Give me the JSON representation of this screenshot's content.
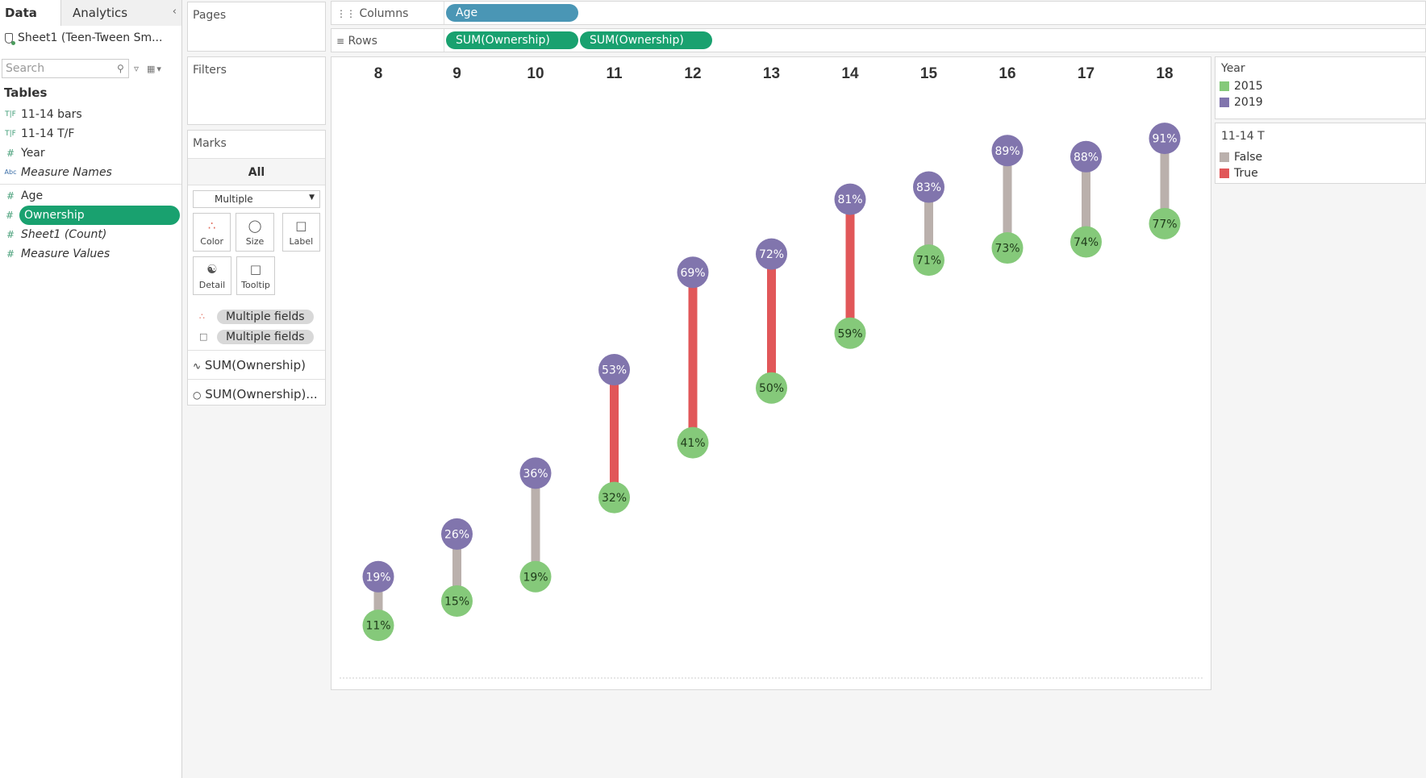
{
  "data_pane": {
    "tabs": [
      "Data",
      "Analytics"
    ],
    "collapse_icon": "chevron-left-icon",
    "datasource": "Sheet1 (Teen-Tween Sm...",
    "search_placeholder": "Search",
    "tables_heading": "Tables",
    "fields": [
      {
        "icon": "T|F",
        "label": "11-14 bars"
      },
      {
        "icon": "T|F",
        "label": "11-14 T/F"
      },
      {
        "icon": "#",
        "label": "Year"
      },
      {
        "icon": "Abc",
        "label": "Measure Names"
      },
      {
        "icon": "#",
        "label": "Age"
      },
      {
        "icon": "#",
        "label": "Ownership"
      },
      {
        "icon": "#",
        "label": "Sheet1 (Count)"
      },
      {
        "icon": "#",
        "label": "Measure Values"
      }
    ]
  },
  "pages_card": {
    "title": "Pages"
  },
  "filters_card": {
    "title": "Filters"
  },
  "marks_card": {
    "title": "Marks",
    "all_label": "All",
    "mark_type": "Multiple",
    "buttons": [
      "Color",
      "Size",
      "Label",
      "Detail",
      "Tooltip"
    ],
    "pills": [
      "Multiple fields",
      "Multiple fields"
    ],
    "sub_marks": [
      "SUM(Ownership)",
      "SUM(Ownership)..."
    ]
  },
  "shelves": {
    "columns_label": "Columns",
    "columns_pills": [
      "Age"
    ],
    "rows_label": "Rows",
    "rows_pills": [
      "SUM(Ownership)",
      "SUM(Ownership)"
    ]
  },
  "legends": {
    "year": {
      "title": "Year",
      "items": [
        {
          "label": "2015",
          "color": "#85c97a"
        },
        {
          "label": "2019",
          "color": "#8175ad"
        }
      ]
    },
    "tf": {
      "title": "11-14 T",
      "items": [
        {
          "label": "False",
          "color": "#bab0ac"
        },
        {
          "label": "True",
          "color": "#e15759"
        }
      ]
    }
  },
  "chart_data": {
    "type": "dumbbell",
    "categories": [
      "8",
      "9",
      "10",
      "11",
      "12",
      "13",
      "14",
      "15",
      "16",
      "17",
      "18"
    ],
    "series": [
      {
        "name": "2015",
        "color": "#85c97a",
        "values": [
          11,
          15,
          19,
          32,
          41,
          50,
          59,
          71,
          73,
          74,
          77
        ],
        "labels": [
          "11%",
          "15%",
          "19%",
          "32%",
          "41%",
          "50%",
          "59%",
          "71%",
          "73%",
          "74%",
          "77%"
        ]
      },
      {
        "name": "2019",
        "color": "#8175ad",
        "values": [
          19,
          26,
          36,
          53,
          69,
          72,
          81,
          83,
          89,
          88,
          91
        ],
        "labels": [
          "19%",
          "26%",
          "36%",
          "53%",
          "69%",
          "72%",
          "81%",
          "83%",
          "89%",
          "88%",
          "91%"
        ]
      }
    ],
    "connector": {
      "true_color": "#e15759",
      "false_color": "#bab0ac",
      "flags": [
        false,
        false,
        false,
        true,
        true,
        true,
        true,
        false,
        false,
        false,
        false
      ]
    },
    "ylim": [
      0,
      100
    ]
  }
}
